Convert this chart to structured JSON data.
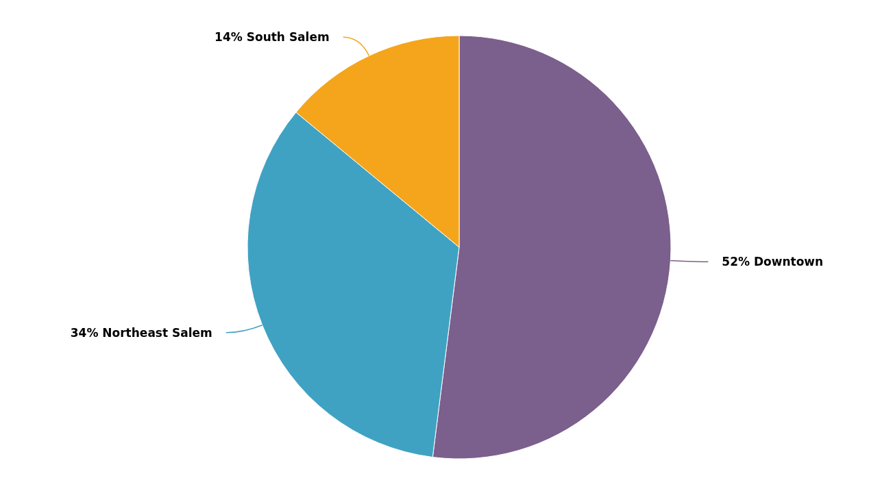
{
  "chart_data": {
    "type": "pie",
    "categories": [
      "Downtown",
      "Northeast Salem",
      "South Salem"
    ],
    "values": [
      52,
      34,
      14
    ],
    "colors": [
      "#7b5f8c",
      "#40a2c2",
      "#f4a51b"
    ],
    "value_labels": [
      "52%",
      "34%",
      "14%"
    ]
  }
}
